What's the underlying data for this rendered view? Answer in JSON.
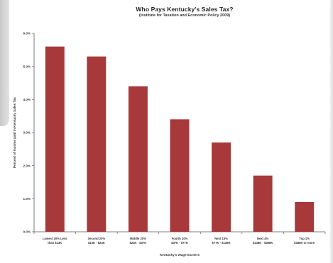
{
  "chart_data": {
    "type": "bar",
    "title": "Who Pays Kentucky's Sales Tax?",
    "subtitle": "(Institute for Taxation and Economic Policy 2009)",
    "xlabel": "Kentucky's Wage Earners",
    "ylabel": "Percent of income paid in Kentucky Sales Tax",
    "categories": [
      [
        "Lowest 20% Less",
        "than $13K"
      ],
      [
        "Second 20%",
        "$13K - $24K"
      ],
      [
        "Middle 20%",
        "$24K - $37K"
      ],
      [
        "Fourth 20%",
        "$37K - $77K"
      ],
      [
        "Next 15%",
        "$77K - $138K"
      ],
      [
        "Next 4%",
        "$138K - $388K"
      ],
      [
        "Top 1%",
        "$388K or more"
      ]
    ],
    "values": [
      5.6,
      5.3,
      4.4,
      3.4,
      2.7,
      1.7,
      0.9
    ],
    "ylim": [
      0,
      6
    ],
    "yticks": [
      "0.0%",
      "1.0%",
      "2.0%",
      "3.0%",
      "4.0%",
      "5.0%",
      "6.0%"
    ],
    "bar_color": "#a8393a",
    "grid": false,
    "legend": "none"
  }
}
